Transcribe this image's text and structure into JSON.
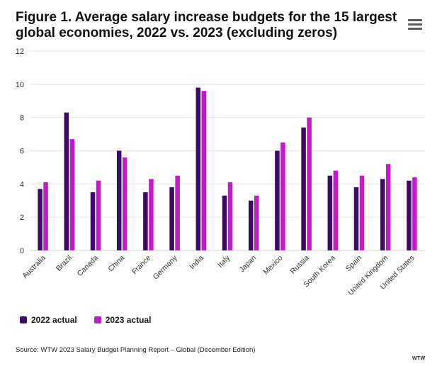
{
  "chart_data": {
    "type": "bar",
    "title": "Figure 1. Average salary increase budgets for the 15 largest global economies, 2022 vs. 2023 (excluding zeros)",
    "categories": [
      "Australia",
      "Brazil",
      "Canada",
      "China",
      "France",
      "Germany",
      "India",
      "Italy",
      "Japan",
      "Mexico",
      "Russia",
      "South Korea",
      "Spain",
      "United Kingdom",
      "United States"
    ],
    "series": [
      {
        "name": "2022 actual",
        "color": "#3d0a6b",
        "values": [
          3.7,
          8.3,
          3.5,
          6.0,
          3.5,
          3.8,
          9.8,
          3.3,
          3.0,
          6.0,
          7.4,
          4.5,
          3.8,
          4.3,
          4.2
        ]
      },
      {
        "name": "2023 actual",
        "color": "#c21cc4",
        "values": [
          4.1,
          6.7,
          4.2,
          5.6,
          4.3,
          4.5,
          9.6,
          4.1,
          3.3,
          6.5,
          8.0,
          4.8,
          4.5,
          5.2,
          4.4
        ]
      }
    ],
    "xlabel": "",
    "ylabel": "",
    "ylim": [
      0,
      12
    ],
    "yticks": [
      "0",
      "2",
      "4",
      "6",
      "8",
      "10",
      "12"
    ],
    "grid": true,
    "legend": "bottom-left"
  },
  "source": "Source: WTW 2023 Salary Budget Planning Report – Global (December Edition)",
  "brand": "WTW",
  "menu_icon": "hamburger-menu-icon"
}
